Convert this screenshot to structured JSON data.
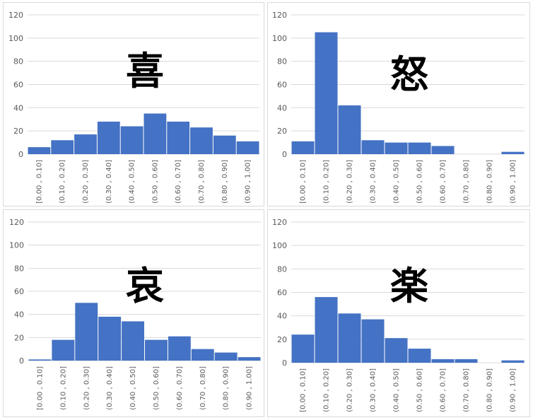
{
  "bar_color": "#4472c4",
  "grid_color": "#d9d9d9",
  "chart_data": [
    {
      "type": "bar",
      "title": "喜",
      "categories": [
        "[0.00 , 0.10]",
        "(0.10 , 0.20]",
        "(0.20 , 0.30]",
        "(0.30 , 0.40]",
        "(0.40 , 0.50]",
        "(0.50 , 0.60]",
        "(0.60 , 0.70]",
        "(0.70 , 0.80]",
        "(0.80 , 0.90]",
        "(0.90 , 1.00]"
      ],
      "values": [
        6,
        12,
        17,
        28,
        24,
        35,
        28,
        23,
        16,
        11
      ],
      "ylim": [
        0,
        120
      ],
      "yticks": [
        "0",
        "20",
        "40",
        "60",
        "80",
        "100",
        "120"
      ],
      "grid": true
    },
    {
      "type": "bar",
      "title": "怒",
      "categories": [
        "[0.00 , 0.10]",
        "(0.10 , 0.20]",
        "(0.20 , 0.30]",
        "(0.30 , 0.40]",
        "(0.40 , 0.50]",
        "(0.50 , 0.60]",
        "(0.60 , 0.70]",
        "(0.70 , 0.80]",
        "(0.80 , 0.90]",
        "(0.90 , 1.00]"
      ],
      "values": [
        11,
        105,
        42,
        12,
        10,
        10,
        7,
        0,
        0,
        2
      ],
      "ylim": [
        0,
        120
      ],
      "yticks": [
        "0",
        "20",
        "40",
        "60",
        "80",
        "100",
        "120"
      ],
      "grid": true
    },
    {
      "type": "bar",
      "title": "哀",
      "categories": [
        "[0.00 , 0.10]",
        "(0.10 , 0.20]",
        "(0.20 , 0.30]",
        "(0.30 , 0.40]",
        "(0.40 , 0.50]",
        "(0.50 , 0.60]",
        "(0.60 , 0.70]",
        "(0.70 , 0.80]",
        "(0.80 , 0.90]",
        "(0.90 , 1.00]"
      ],
      "values": [
        1,
        18,
        50,
        38,
        34,
        18,
        21,
        10,
        7,
        3
      ],
      "ylim": [
        0,
        120
      ],
      "yticks": [
        "0",
        "20",
        "40",
        "60",
        "80",
        "100",
        "120"
      ],
      "grid": true
    },
    {
      "type": "bar",
      "title": "楽",
      "categories": [
        "[0.00 , 0.10]",
        "(0.10 , 0.20]",
        "(0.20 , 0.30]",
        "(0.30 , 0.40]",
        "(0.40 , 0.50]",
        "(0.50 , 0.60]",
        "(0.60 , 0.70]",
        "(0.70 , 0.80]",
        "(0.80 , 0.90]",
        "(0.90 , 1.00]"
      ],
      "values": [
        24,
        56,
        42,
        37,
        21,
        12,
        3,
        3,
        0,
        2
      ],
      "ylim": [
        0,
        120
      ],
      "yticks": [
        "0",
        "20",
        "40",
        "60",
        "80",
        "100",
        "120"
      ],
      "grid": true
    }
  ]
}
